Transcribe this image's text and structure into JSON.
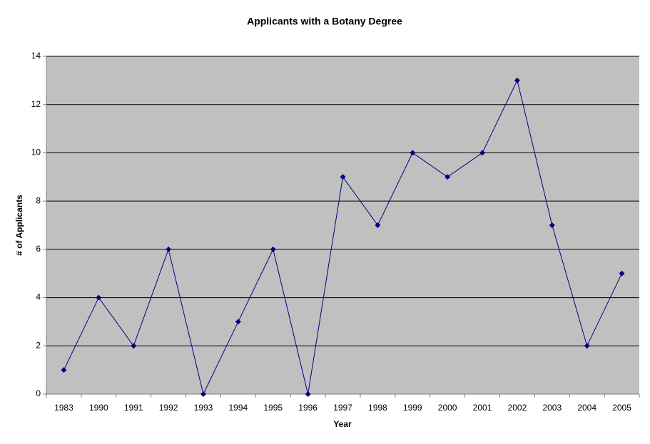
{
  "chart_data": {
    "type": "line",
    "title": "Applicants with a Botany Degree",
    "x_label": "Year",
    "y_label": "# of Applicants",
    "categories": [
      "1983",
      "1990",
      "1991",
      "1992",
      "1993",
      "1994",
      "1995",
      "1996",
      "1997",
      "1998",
      "1999",
      "2000",
      "2001",
      "2002",
      "2003",
      "2004",
      "2005"
    ],
    "values": [
      1,
      4,
      2,
      6,
      0,
      3,
      6,
      0,
      9,
      7,
      10,
      9,
      10,
      13,
      7,
      2,
      5
    ],
    "color": "#000080",
    "marker": "diamond",
    "ylim": [
      0,
      14
    ],
    "yticks": [
      0,
      2,
      4,
      6,
      8,
      10,
      12,
      14
    ],
    "grid": true
  }
}
